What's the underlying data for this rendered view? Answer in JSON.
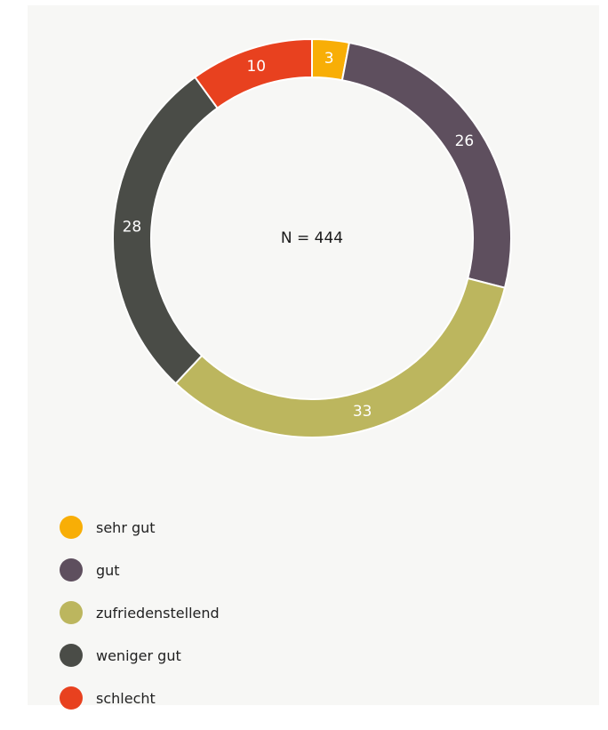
{
  "chart_data": {
    "type": "pie",
    "style": "donut",
    "center_label": "N = 444",
    "categories": [
      "sehr gut",
      "gut",
      "zufriedenstellend",
      "weniger gut",
      "schlecht"
    ],
    "values": [
      3,
      26,
      33,
      28,
      10
    ],
    "data_labels": [
      "3",
      "26",
      "33",
      "28",
      "10"
    ],
    "colors": [
      "#f8ae06",
      "#5e4f5e",
      "#bcb65e",
      "#4a4c47",
      "#e8411f"
    ],
    "legend_position": "bottom-left"
  }
}
